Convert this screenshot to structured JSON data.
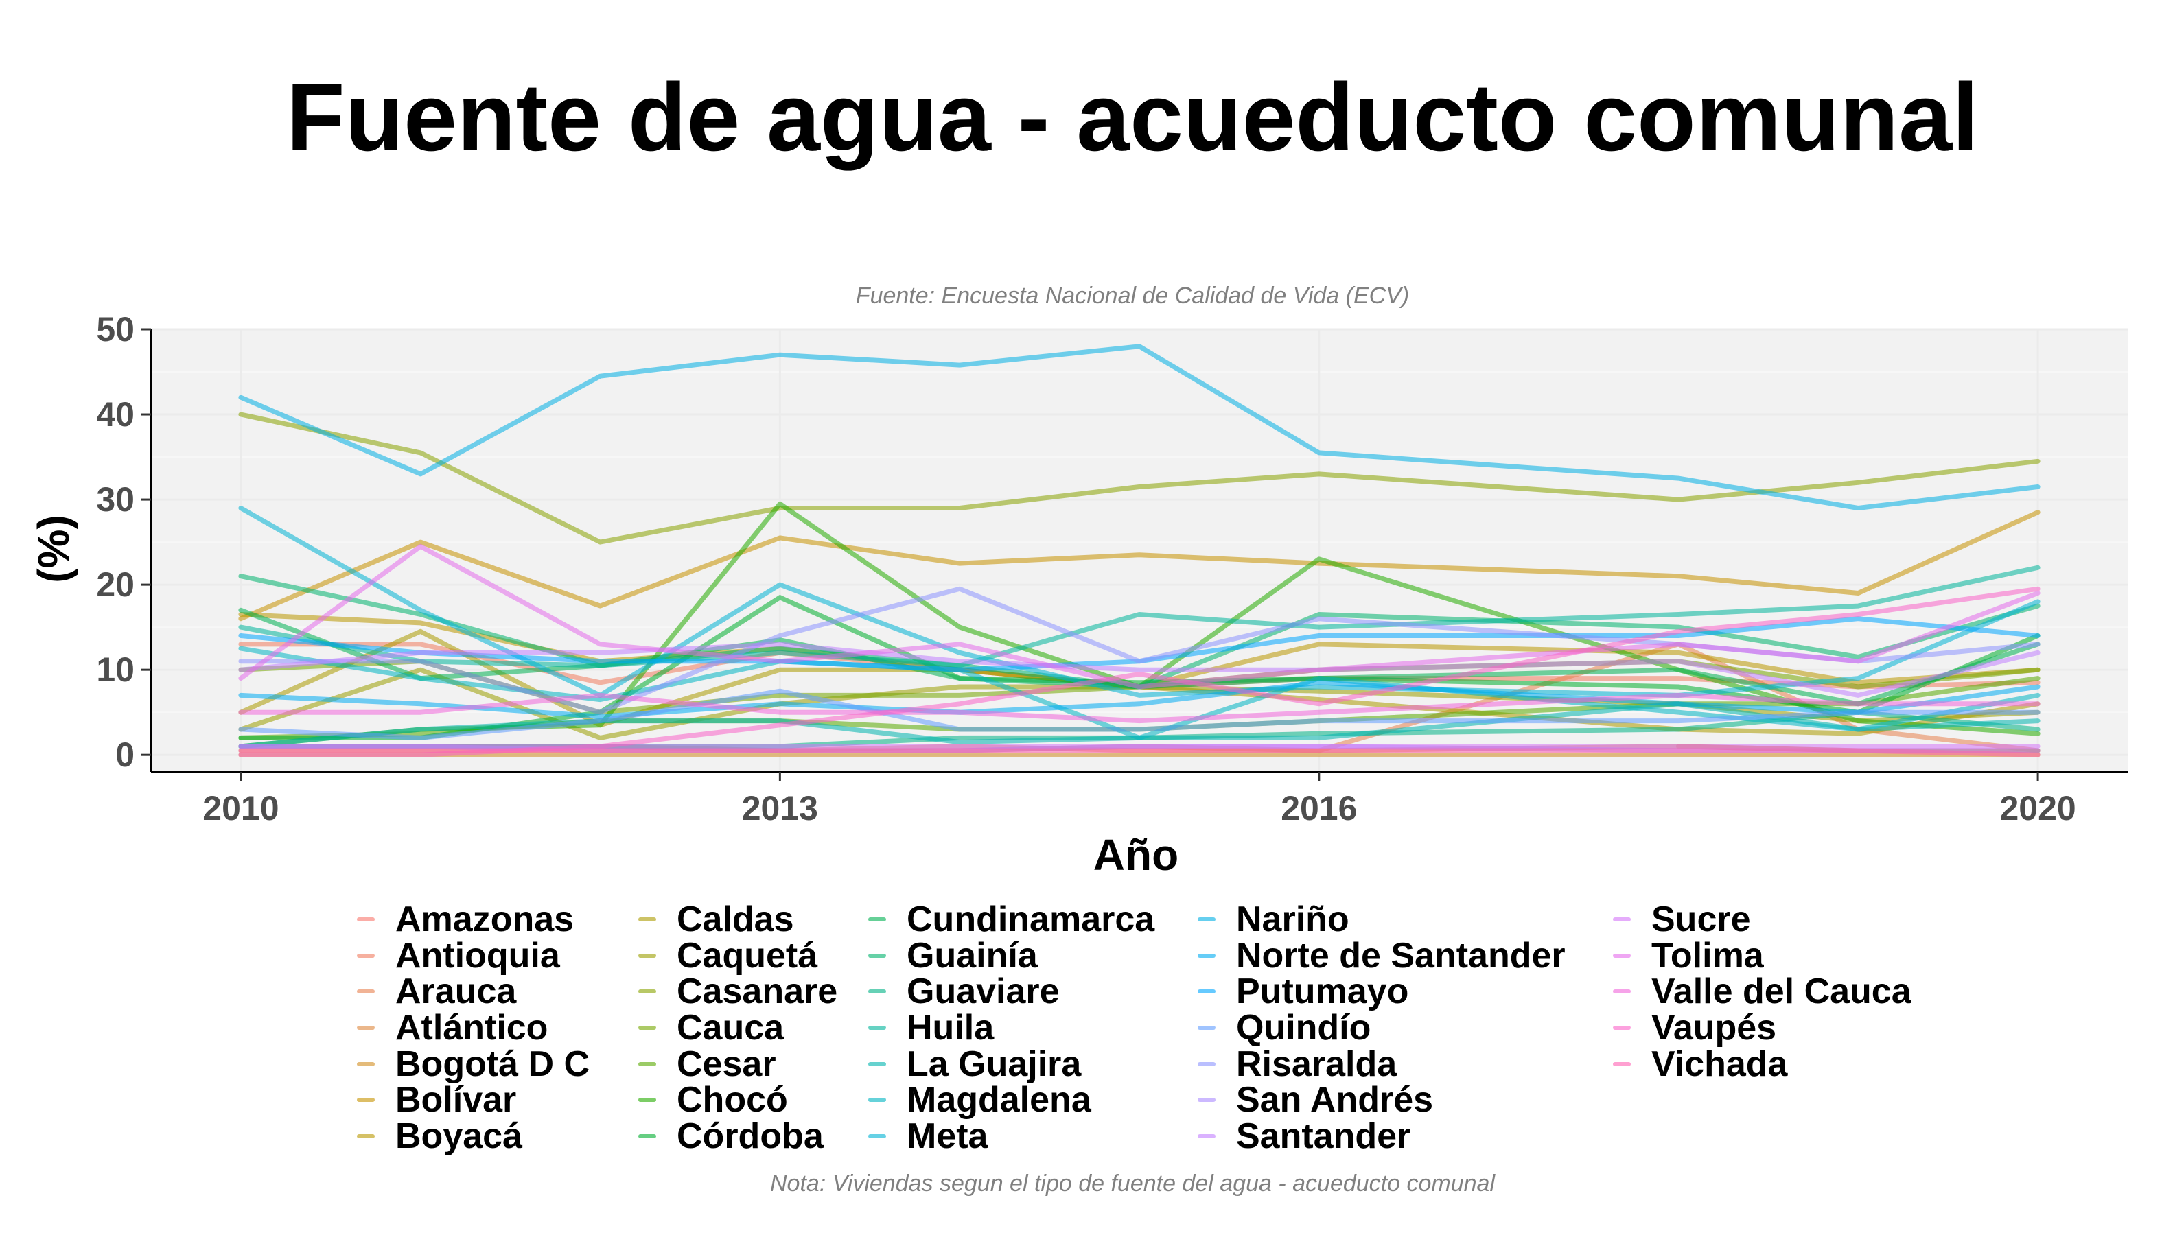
{
  "chart_data": {
    "type": "line",
    "title": "Fuente de agua - acueducto comunal",
    "subtitle": "Fuente: Encuesta Nacional de Calidad de Vida (ECV)",
    "xlabel": "Año",
    "ylabel": "(%)",
    "note": "Nota: Viviendas segun el tipo de fuente del agua - acueducto comunal",
    "x": [
      2010,
      2011,
      2012,
      2013,
      2014,
      2015,
      2016,
      2018,
      2019,
      2020
    ],
    "xticks": [
      2010,
      2013,
      2016,
      2020
    ],
    "yticks": [
      0,
      10,
      20,
      30,
      40,
      50
    ],
    "xlim": [
      2009.5,
      2020.5
    ],
    "ylim": [
      -2,
      50
    ],
    "grid": true,
    "legend_position": "bottom",
    "series": [
      {
        "name": "Amazonas",
        "color": "#F8766D",
        "values": [
          null,
          null,
          null,
          null,
          null,
          null,
          null,
          1,
          0.5,
          0.5
        ]
      },
      {
        "name": "Antioquia",
        "color": "#F07B5F",
        "values": [
          13,
          13,
          8.5,
          12,
          10,
          8,
          9,
          9,
          8,
          8.5
        ]
      },
      {
        "name": "Arauca",
        "color": "#E7814F",
        "values": [
          1,
          1,
          1,
          0.5,
          1,
          0.5,
          0.5,
          13,
          3,
          0.5
        ]
      },
      {
        "name": "Atlántico",
        "color": "#DD873D",
        "values": [
          0.5,
          0.5,
          0.5,
          0.5,
          0.5,
          1,
          0.5,
          1,
          0.5,
          0.5
        ]
      },
      {
        "name": "Bogotá D C",
        "color": "#D28D22",
        "values": [
          0,
          0,
          0,
          0,
          0,
          0,
          0,
          0,
          0,
          0
        ]
      },
      {
        "name": "Bolívar",
        "color": "#C69200",
        "values": [
          16,
          25,
          17.5,
          25.5,
          22.5,
          23.5,
          22.5,
          21,
          19,
          28.5
        ]
      },
      {
        "name": "Boyacá",
        "color": "#B99700",
        "values": [
          16.5,
          15.5,
          11,
          12.5,
          10,
          8,
          13,
          12,
          8.5,
          10
        ]
      },
      {
        "name": "Caldas",
        "color": "#AB9B00",
        "values": [
          5,
          14.5,
          3.5,
          10,
          10,
          8,
          6.5,
          3,
          2.5,
          6
        ]
      },
      {
        "name": "Caquetá",
        "color": "#9B9F00",
        "values": [
          3,
          10,
          2,
          6,
          8,
          8,
          7.5,
          6,
          4,
          5
        ]
      },
      {
        "name": "Casanare",
        "color": "#89A300",
        "values": [
          40,
          35.5,
          25,
          29,
          29,
          31.5,
          33,
          30,
          32,
          34.5
        ]
      },
      {
        "name": "Cauca",
        "color": "#74A600",
        "values": [
          10,
          11,
          5,
          7,
          7,
          8,
          10,
          11,
          8,
          10
        ]
      },
      {
        "name": "Cesar",
        "color": "#58A900",
        "values": [
          2,
          2.5,
          4,
          4,
          3,
          3,
          4,
          6,
          6,
          9
        ]
      },
      {
        "name": "Chocó",
        "color": "#25AC00",
        "values": [
          1,
          3,
          3.5,
          29.5,
          15,
          8,
          23,
          10,
          4,
          2.5
        ]
      },
      {
        "name": "Córdoba",
        "color": "#00AE2E",
        "values": [
          2,
          2,
          5,
          18.5,
          9,
          8.5,
          9,
          8,
          5,
          14
        ]
      },
      {
        "name": "Cundinamarca",
        "color": "#00B052",
        "values": [
          17,
          9,
          10.5,
          13.5,
          9,
          8,
          9,
          10,
          6,
          13
        ]
      },
      {
        "name": "Guainía",
        "color": "#00B26D",
        "values": [
          21,
          16.5,
          10.5,
          12.5,
          10.5,
          8,
          16.5,
          15,
          11.5,
          17.5
        ]
      },
      {
        "name": "Guaviare",
        "color": "#00B385",
        "values": [
          1,
          1,
          1,
          1,
          2,
          2,
          2.5,
          3,
          5,
          3
        ]
      },
      {
        "name": "Huila",
        "color": "#00B49B",
        "values": [
          15,
          11,
          10.5,
          12,
          10.5,
          16.5,
          15,
          16.5,
          17.5,
          22
        ]
      },
      {
        "name": "La Guajira",
        "color": "#00B4AF",
        "values": [
          1,
          3,
          4,
          4,
          1.5,
          2,
          2,
          6,
          3,
          4
        ]
      },
      {
        "name": "Magdalena",
        "color": "#00B4C2",
        "values": [
          12.5,
          9,
          6.5,
          11,
          10,
          2,
          9,
          5,
          3,
          7
        ]
      },
      {
        "name": "Meta",
        "color": "#00B2D4",
        "values": [
          29,
          17,
          7,
          20,
          12,
          7,
          8,
          7,
          9,
          18
        ]
      },
      {
        "name": "Nariño",
        "color": "#00AFE4",
        "values": [
          42,
          33,
          44.5,
          47,
          45.8,
          48,
          35.5,
          32.5,
          29,
          31.5
        ]
      },
      {
        "name": "Norte de Santander",
        "color": "#00ABF2",
        "values": [
          7,
          6,
          4.5,
          6,
          5,
          6,
          8.5,
          6,
          5,
          8
        ]
      },
      {
        "name": "Putumayo",
        "color": "#00A6FF",
        "values": [
          14,
          12,
          11,
          11,
          10,
          11,
          14,
          14,
          16,
          14
        ]
      },
      {
        "name": "Quindío",
        "color": "#619CFF",
        "values": [
          3,
          2,
          4,
          7.5,
          3,
          3,
          4,
          4,
          5,
          5
        ]
      },
      {
        "name": "Risaralda",
        "color": "#8C94FF",
        "values": [
          11,
          11,
          5,
          14,
          19.5,
          11,
          16,
          13,
          11,
          13
        ]
      },
      {
        "name": "San Andrés",
        "color": "#AA8AFF",
        "values": [
          1,
          1,
          0.5,
          0.5,
          0.5,
          1,
          1,
          0.5,
          0.5,
          0.5
        ]
      },
      {
        "name": "Santander",
        "color": "#C17FFF",
        "values": [
          10,
          12,
          12,
          13,
          11,
          10,
          10,
          11,
          7,
          12
        ]
      },
      {
        "name": "Sucre",
        "color": "#D474F8",
        "values": [
          1,
          1,
          1,
          1,
          1,
          1,
          1,
          1,
          1,
          1
        ]
      },
      {
        "name": "Tolima",
        "color": "#E46BEB",
        "values": [
          9,
          24.5,
          13,
          11,
          13,
          8,
          10,
          13,
          11,
          19
        ]
      },
      {
        "name": "Valle del Cauca",
        "color": "#F066DB",
        "values": [
          5,
          5,
          7,
          5,
          5,
          4,
          5,
          7,
          6,
          6
        ]
      },
      {
        "name": "Vaupés",
        "color": "#FA63C8",
        "values": [
          0,
          0,
          1,
          3.5,
          6,
          9.5,
          6,
          14.5,
          16.5,
          19.5
        ]
      },
      {
        "name": "Vichada",
        "color": "#FF61B2",
        "values": [
          0.5,
          0.5,
          0.5,
          0.5,
          0.5,
          0.5,
          0.5,
          0.5,
          0.5,
          0
        ]
      }
    ]
  }
}
